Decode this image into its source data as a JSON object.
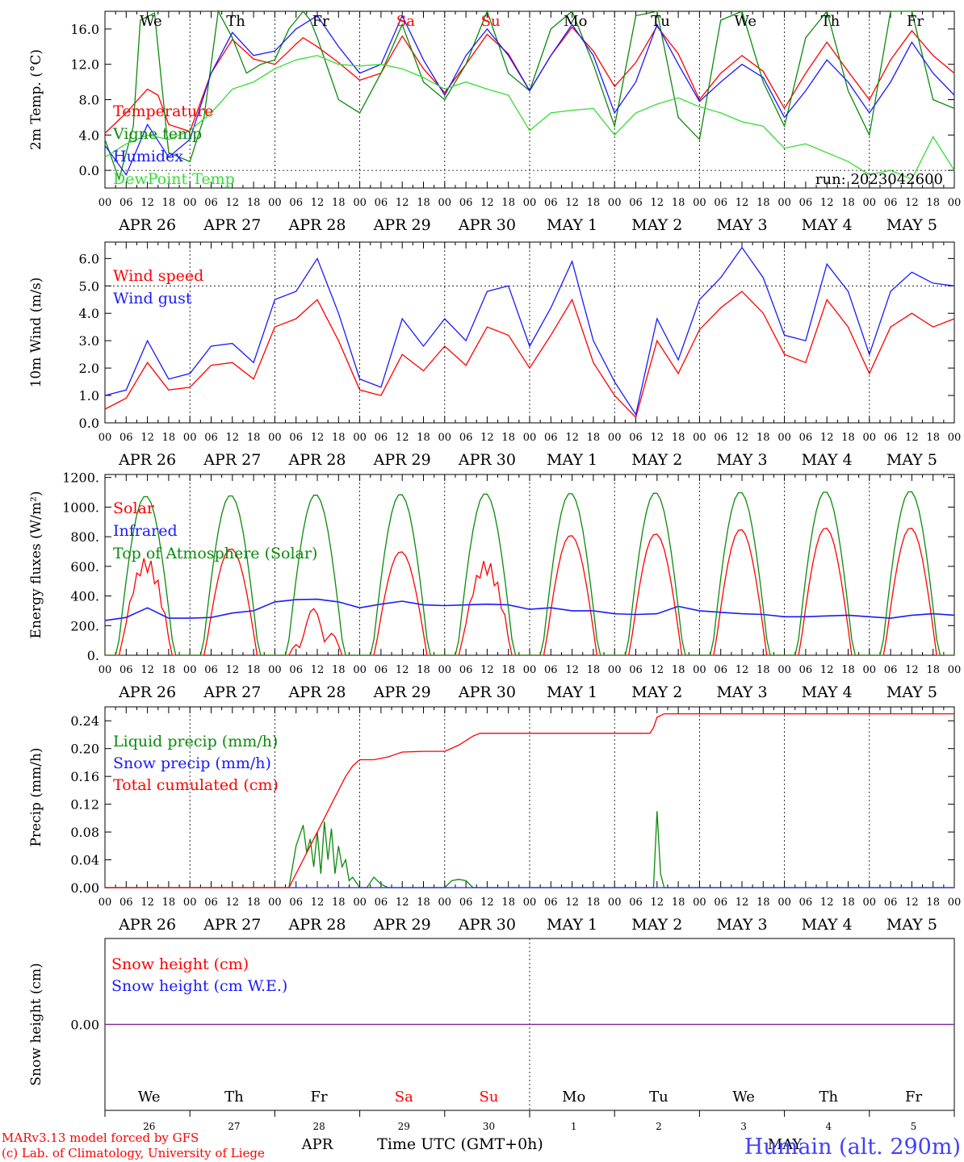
{
  "footer": {
    "credit1": "MARv3.13 model forced by GFS",
    "credit2": "(c) Lab. of Climatology, University of Liege",
    "xlabel": "Time UTC (GMT+0h)",
    "station": "Humain (alt. 290m)",
    "month_apr": "APR",
    "month_may": "MAY"
  },
  "colors": {
    "red": "#ff0000",
    "dkgreen": "#0a8a0a",
    "blue": "#1a1aff",
    "ltgreen": "#33dd33",
    "purple": "#7a2aa0"
  },
  "days": {
    "dates": [
      "APR 26",
      "APR 27",
      "APR 28",
      "APR 29",
      "APR 30",
      "MAY  1",
      "MAY  2",
      "MAY  3",
      "MAY  4",
      "MAY  5"
    ],
    "weekdays": [
      "We",
      "Th",
      "Fr",
      "Sa",
      "Su",
      "Mo",
      "Tu",
      "We",
      "Th",
      "Fr"
    ],
    "weekday_colors": [
      "#000000",
      "#000000",
      "#000000",
      "#ff0000",
      "#ff0000",
      "#000000",
      "#000000",
      "#000000",
      "#000000",
      "#000000"
    ],
    "day_numbers": [
      "26",
      "27",
      "28",
      "29",
      "30",
      "1",
      "2",
      "3",
      "4",
      "5"
    ],
    "hour_ticks": [
      "00",
      "06",
      "12",
      "18"
    ],
    "end_tick": "00"
  },
  "chart_data": [
    {
      "type": "line",
      "ylabel": "2m Temp. (°C)",
      "ylim": [
        -2,
        18
      ],
      "yticks": [
        "0.0",
        "4.0",
        "8.0",
        "12.0",
        "16.0"
      ],
      "ytick_values": [
        0,
        4,
        8,
        12,
        16
      ],
      "dashed_y": 0,
      "annotation": "run: 2023042600",
      "x_unit": "hours since APR 26 00 UTC",
      "series": [
        {
          "name": "Temperature",
          "color": "#ff0000",
          "x": [
            0,
            6,
            12,
            15,
            18,
            24,
            30,
            36,
            42,
            48,
            52,
            54,
            56,
            60,
            66,
            72,
            78,
            84,
            90,
            96,
            102,
            108,
            114,
            120,
            126,
            132,
            138,
            144,
            150,
            156,
            162,
            168,
            174,
            180,
            186,
            192,
            198,
            204,
            210,
            216,
            222,
            228,
            234,
            240
          ],
          "y": [
            4.2,
            6.5,
            9.2,
            8.5,
            5.2,
            4.4,
            11,
            14.8,
            12.6,
            12,
            13.5,
            14.3,
            15,
            14,
            12.2,
            10.2,
            11,
            15.2,
            11.5,
            8.8,
            12,
            15.4,
            13.2,
            9,
            13,
            16.2,
            13.5,
            9.5,
            12.2,
            16.3,
            13.2,
            8,
            11,
            13,
            11.2,
            7,
            11,
            14.5,
            11.2,
            8,
            12.5,
            15.8,
            13,
            11
          ]
        },
        {
          "name": "Vigne temp",
          "color": "#0a8a0a",
          "x": [
            0,
            4,
            8,
            10,
            14,
            18,
            24,
            28,
            32,
            36,
            40,
            44,
            48,
            52,
            54,
            56,
            58,
            60,
            66,
            72,
            78,
            84,
            90,
            96,
            102,
            108,
            114,
            120,
            126,
            132,
            138,
            144,
            150,
            156,
            162,
            168,
            174,
            180,
            186,
            192,
            198,
            204,
            210,
            216,
            222,
            228,
            234,
            240
          ],
          "y": [
            3.5,
            -1,
            5,
            17,
            17.8,
            2,
            1,
            6,
            18,
            15,
            11,
            12,
            12.5,
            16,
            17,
            18,
            17,
            15,
            8,
            6.5,
            11,
            16.5,
            10,
            8,
            12,
            18,
            11,
            9,
            16,
            18,
            12,
            5,
            17.5,
            18,
            6,
            3.5,
            17,
            18,
            10,
            5,
            15,
            18,
            9,
            4,
            18,
            18,
            8,
            7
          ]
        },
        {
          "name": "Humidex",
          "color": "#1a1aff",
          "x": [
            0,
            6,
            12,
            18,
            24,
            30,
            36,
            42,
            48,
            54,
            60,
            66,
            72,
            78,
            84,
            90,
            96,
            102,
            108,
            114,
            120,
            126,
            132,
            138,
            144,
            150,
            156,
            162,
            168,
            174,
            180,
            186,
            192,
            198,
            204,
            210,
            216,
            222,
            228,
            234,
            240
          ],
          "y": [
            2.8,
            -0.5,
            5.2,
            1.5,
            3.5,
            11,
            15.6,
            13,
            13.5,
            16,
            17.5,
            14,
            11,
            12,
            17.5,
            12.5,
            8.5,
            13,
            16,
            13,
            9,
            13,
            16.5,
            13,
            6.5,
            10,
            16.5,
            12,
            7.8,
            10,
            12,
            10.5,
            6,
            9,
            12.5,
            10,
            6.5,
            10,
            14.5,
            11,
            8.5
          ]
        },
        {
          "name": "DewPoint Temp",
          "color": "#33dd33",
          "x": [
            0,
            6,
            12,
            18,
            24,
            30,
            36,
            42,
            48,
            54,
            60,
            66,
            72,
            78,
            84,
            90,
            96,
            102,
            108,
            114,
            120,
            126,
            132,
            138,
            144,
            150,
            156,
            162,
            168,
            174,
            180,
            186,
            192,
            198,
            204,
            210,
            216,
            222,
            228,
            234,
            240
          ],
          "y": [
            1.5,
            3,
            4,
            3.5,
            4.5,
            6.5,
            9.2,
            10,
            11.5,
            12.5,
            13,
            12,
            11.8,
            12,
            11.5,
            10.5,
            9.2,
            10,
            9.2,
            8.5,
            4.5,
            6.5,
            6.8,
            7,
            4,
            6.5,
            7.5,
            8.2,
            7.2,
            6.5,
            5.5,
            5,
            2.5,
            3,
            2,
            1,
            -0.5,
            0,
            -1,
            3.8,
            0
          ]
        }
      ]
    },
    {
      "type": "line",
      "ylabel": "10m Wind (m/s)",
      "ylim": [
        0,
        6.6
      ],
      "yticks": [
        "0.0",
        "1.0",
        "2.0",
        "3.0",
        "4.0",
        "5.0",
        "6.0"
      ],
      "ytick_values": [
        0,
        1,
        2,
        3,
        4,
        5,
        6
      ],
      "dashed_y": 5,
      "x_unit": "hours since APR 26 00 UTC",
      "series": [
        {
          "name": "Wind speed",
          "color": "#ff0000",
          "x": [
            0,
            6,
            12,
            18,
            24,
            30,
            36,
            42,
            48,
            54,
            60,
            66,
            72,
            78,
            84,
            90,
            96,
            102,
            108,
            114,
            120,
            126,
            132,
            138,
            144,
            150,
            156,
            162,
            168,
            174,
            180,
            186,
            192,
            198,
            204,
            210,
            216,
            222,
            228,
            234,
            240
          ],
          "y": [
            0.5,
            0.9,
            2.2,
            1.2,
            1.3,
            2.1,
            2.2,
            1.6,
            3.5,
            3.8,
            4.5,
            3,
            1.2,
            1,
            2.5,
            1.9,
            2.8,
            2.1,
            3.5,
            3.2,
            2,
            3.2,
            4.5,
            2.2,
            1,
            0.2,
            3,
            1.8,
            3.4,
            4.2,
            4.8,
            4,
            2.5,
            2.2,
            4.5,
            3.5,
            1.8,
            3.5,
            4,
            3.5,
            3.8
          ]
        },
        {
          "name": "Wind gust",
          "color": "#1a1aff",
          "x": [
            0,
            6,
            12,
            18,
            24,
            30,
            36,
            42,
            48,
            54,
            60,
            66,
            72,
            78,
            84,
            90,
            96,
            102,
            108,
            114,
            120,
            126,
            132,
            138,
            144,
            150,
            156,
            162,
            168,
            174,
            180,
            186,
            192,
            198,
            204,
            210,
            216,
            222,
            228,
            234,
            240
          ],
          "y": [
            1,
            1.2,
            3,
            1.6,
            1.8,
            2.8,
            2.9,
            2.2,
            4.5,
            4.8,
            6,
            4,
            1.6,
            1.3,
            3.8,
            2.8,
            3.8,
            3,
            4.8,
            5,
            2.8,
            4.2,
            5.9,
            3,
            1.5,
            0.3,
            3.8,
            2.3,
            4.5,
            5.3,
            6.4,
            5.3,
            3.2,
            3,
            5.8,
            4.8,
            2.5,
            4.8,
            5.5,
            5.1,
            5
          ]
        }
      ]
    },
    {
      "type": "line",
      "ylabel": "Energy fluxes (W/m²)",
      "ylim": [
        0,
        1220
      ],
      "yticks": [
        "0.",
        "200.",
        "400.",
        "600.",
        "800.",
        "1000.",
        "1200."
      ],
      "ytick_values": [
        0,
        200,
        400,
        600,
        800,
        1000,
        1200
      ],
      "x_unit": "hours since APR 26 00 UTC",
      "solar_peaks": [
        720,
        720,
        320,
        700,
        700,
        810,
        820,
        850,
        860,
        860
      ],
      "toa_peaks": [
        1075,
        1080,
        1085,
        1088,
        1092,
        1095,
        1098,
        1102,
        1105,
        1108
      ],
      "series": [
        {
          "name": "Solar",
          "color": "#ff0000",
          "x": [],
          "y": []
        },
        {
          "name": "Infrared",
          "color": "#1a1aff",
          "x": [
            0,
            6,
            12,
            18,
            24,
            30,
            36,
            42,
            48,
            54,
            60,
            66,
            72,
            78,
            84,
            90,
            96,
            102,
            108,
            114,
            120,
            126,
            132,
            138,
            144,
            150,
            156,
            162,
            168,
            174,
            180,
            186,
            192,
            198,
            204,
            210,
            216,
            222,
            228,
            234,
            240
          ],
          "y": [
            235,
            255,
            320,
            250,
            250,
            255,
            285,
            300,
            360,
            375,
            378,
            360,
            320,
            345,
            365,
            340,
            335,
            340,
            345,
            340,
            310,
            320,
            300,
            300,
            280,
            275,
            280,
            330,
            300,
            290,
            280,
            275,
            260,
            260,
            265,
            270,
            260,
            250,
            270,
            280,
            270
          ]
        },
        {
          "name": "Top of Atmosphere (Solar)",
          "color": "#0a8a0a",
          "x": [],
          "y": []
        }
      ]
    },
    {
      "type": "line",
      "ylabel": "Precip (mm/h)",
      "ylim": [
        0,
        0.26
      ],
      "yticks": [
        "0.00",
        "0.04",
        "0.08",
        "0.12",
        "0.16",
        "0.20",
        "0.24"
      ],
      "ytick_values": [
        0,
        0.04,
        0.08,
        0.12,
        0.16,
        0.2,
        0.24
      ],
      "x_unit": "hours since APR 26 00 UTC",
      "series": [
        {
          "name": "Liquid precip (mm/h)",
          "color": "#0a8a0a",
          "x": [
            0,
            52,
            54,
            56,
            57,
            58,
            59,
            60,
            61,
            62,
            63,
            64,
            65,
            66,
            67,
            68,
            69,
            70,
            72,
            74,
            76,
            78,
            80,
            96,
            98,
            100,
            102,
            104,
            155,
            156,
            157,
            158,
            240
          ],
          "y": [
            0,
            0,
            0.06,
            0.09,
            0.05,
            0.07,
            0.03,
            0.08,
            0.02,
            0.095,
            0.04,
            0.085,
            0.02,
            0.06,
            0.03,
            0.04,
            0.01,
            0.015,
            0,
            0,
            0.015,
            0.005,
            0,
            0,
            0.01,
            0.012,
            0.01,
            0,
            0,
            0.11,
            0.02,
            0,
            0
          ]
        },
        {
          "name": "Snow precip (mm/h)",
          "color": "#1a1aff",
          "x": [
            0,
            240
          ],
          "y": [
            0,
            0
          ]
        },
        {
          "name": "Total cumulated (cm)",
          "color": "#ff0000",
          "x": [
            0,
            52,
            56,
            60,
            62,
            64,
            66,
            68,
            70,
            72,
            76,
            80,
            84,
            90,
            96,
            100,
            104,
            106,
            150,
            154,
            155,
            156,
            158,
            240
          ],
          "y": [
            0,
            0,
            0.04,
            0.08,
            0.1,
            0.12,
            0.14,
            0.16,
            0.175,
            0.184,
            0.184,
            0.188,
            0.195,
            0.196,
            0.196,
            0.205,
            0.218,
            0.222,
            0.222,
            0.222,
            0.23,
            0.245,
            0.25,
            0.25
          ]
        }
      ]
    },
    {
      "type": "line",
      "ylabel": "Snow height (cm)",
      "ylim": [
        -1,
        1
      ],
      "yticks": [
        "0.00"
      ],
      "ytick_values": [
        0
      ],
      "x_unit": "hours since APR 26 00 UTC",
      "series": [
        {
          "name": "Snow height (cm)",
          "color": "#ff0000",
          "x": [
            0,
            240
          ],
          "y": [
            0,
            0
          ]
        },
        {
          "name": "Snow height (cm W.E.)",
          "color": "#1a1aff",
          "x": [
            0,
            240
          ],
          "y": [
            0,
            0
          ]
        }
      ]
    }
  ]
}
